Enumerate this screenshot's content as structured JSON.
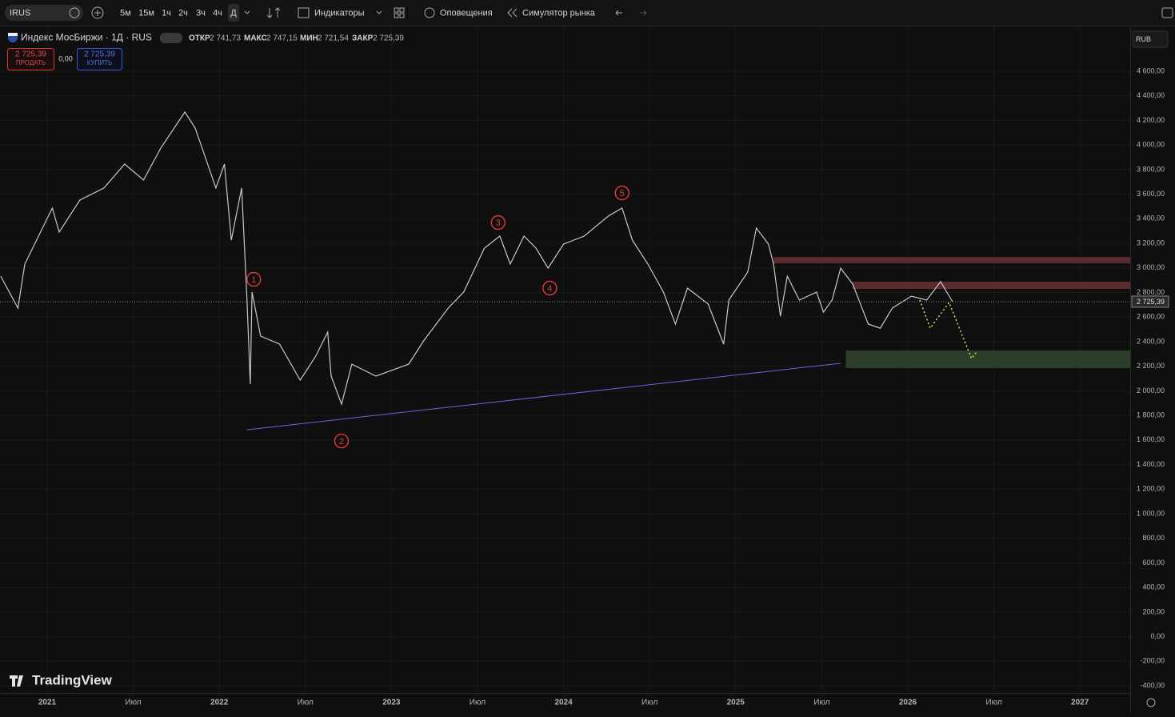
{
  "toolbar": {
    "symbol": "IRUS",
    "intervals": [
      "5м",
      "15м",
      "1ч",
      "2ч",
      "3ч",
      "4ч",
      "Д"
    ],
    "indicators": "Индикаторы",
    "alerts": "Оповещения",
    "replay": "Симулятор рынка"
  },
  "legend": {
    "title": "Индекс МосБиржи · 1Д · RUS",
    "open_label": "ОТКР",
    "open": "2 741,73",
    "high_label": "МАКС",
    "high": "2 747,15",
    "low_label": "МИН",
    "low": "2 721,54",
    "close_label": "ЗАКР",
    "close": "2 725,39",
    "sell_price": "2 725,39",
    "sell": "ПРОДАТЬ",
    "spread": "0,00",
    "buy_price": "2 725,39",
    "buy": "КУПИТЬ"
  },
  "currency": "RUB",
  "brand": "TradingView",
  "chart_data": {
    "type": "line",
    "x": [
      2020.73,
      2020.83,
      2020.87,
      2021.03,
      2021.07,
      2021.19,
      2021.33,
      2021.45,
      2021.56,
      2021.66,
      2021.8,
      2021.86,
      2021.98,
      2022.03,
      2022.07,
      2022.13,
      2022.16,
      2022.18,
      2022.19,
      2022.24,
      2022.35,
      2022.47,
      2022.56,
      2022.63,
      2022.65,
      2022.71,
      2022.77,
      2022.91,
      2023.1,
      2023.19,
      2023.33,
      2023.42,
      2023.54,
      2023.63,
      2023.69,
      2023.77,
      2023.84,
      2023.91,
      2024.0,
      2024.12,
      2024.26,
      2024.34,
      2024.4,
      2024.49,
      2024.58,
      2024.65,
      2024.72,
      2024.84,
      2024.93,
      2024.96,
      2025.07,
      2025.12,
      2025.19,
      2025.22,
      2025.26,
      2025.3,
      2025.37,
      2025.47,
      2025.51,
      2025.56,
      2025.61,
      2025.68,
      2025.77,
      2025.84,
      2025.91,
      2026.02,
      2026.11,
      2026.19,
      2026.26
    ],
    "series": [
      {
        "color": "#c8c8c8",
        "values": [
          2933,
          2673,
          3031,
          3487,
          3291,
          3552,
          3650,
          3845,
          3715,
          3975,
          4268,
          4138,
          3650,
          3845,
          3226,
          3650,
          2770,
          2055,
          2803,
          2445,
          2380,
          2087,
          2282,
          2478,
          2120,
          1892,
          2217,
          2120,
          2217,
          2413,
          2673,
          2803,
          3161,
          3259,
          3031,
          3259,
          3161,
          2998,
          3194,
          3259,
          3422,
          3487,
          3226,
          3031,
          2803,
          2543,
          2836,
          2706,
          2380,
          2738,
          2966,
          3324,
          3194,
          3031,
          2608,
          2933,
          2738,
          2803,
          2640,
          2738,
          2998,
          2868,
          2543,
          2510,
          2673,
          2770,
          2738,
          2888,
          2725
        ]
      }
    ],
    "last_price": 2725.39,
    "last_price_label": "2 725,39",
    "xlim": [
      2020.726,
      2027.292
    ],
    "xticks": [
      2021,
      {
        "value": 2021.5,
        "label": "Июл"
      },
      2022,
      {
        "value": 2022.5,
        "label": "Июл"
      },
      2023,
      {
        "value": 2023.5,
        "label": "Июл"
      },
      2024,
      {
        "value": 2024.5,
        "label": "Июл"
      },
      2025,
      {
        "value": 2025.5,
        "label": "Июл"
      },
      2026,
      {
        "value": 2026.5,
        "label": "Июл"
      },
      2027
    ],
    "ylim": [
      -458,
      4958
    ],
    "yticks": [
      {
        "value": 4600,
        "label": "4 600,00"
      },
      {
        "value": 4400,
        "label": "4 400,00"
      },
      {
        "value": 4200,
        "label": "4 200,00"
      },
      {
        "value": 4000,
        "label": "4 000,00"
      },
      {
        "value": 3800,
        "label": "3 800,00"
      },
      {
        "value": 3600,
        "label": "3 600,00"
      },
      {
        "value": 3400,
        "label": "3 400,00"
      },
      {
        "value": 3200,
        "label": "3 200,00"
      },
      {
        "value": 3000,
        "label": "3 000,00"
      },
      {
        "value": 2800,
        "label": "2 800,00"
      },
      {
        "value": 2600,
        "label": "2 600,00"
      },
      {
        "value": 2400,
        "label": "2 400,00"
      },
      {
        "value": 2200,
        "label": "2 200,00"
      },
      {
        "value": 2000,
        "label": "2 000,00"
      },
      {
        "value": 1800,
        "label": "1 800,00"
      },
      {
        "value": 1600,
        "label": "1 600,00"
      },
      {
        "value": 1400,
        "label": "1 400,00"
      },
      {
        "value": 1200,
        "label": "1 200,00"
      },
      {
        "value": 1000,
        "label": "1 000,00"
      },
      {
        "value": 800,
        "label": "800,00"
      },
      {
        "value": 600,
        "label": "600,00"
      },
      {
        "value": 400,
        "label": "400,00"
      },
      {
        "value": 200,
        "label": "200,00"
      },
      {
        "value": 0,
        "label": "0,00"
      },
      {
        "value": -200,
        "label": "-200,00"
      },
      {
        "value": -400,
        "label": "-400,00"
      }
    ],
    "grid": true,
    "zones": [
      {
        "x": [
          2025.22,
          2027.292
        ],
        "y": [
          3037,
          3089
        ],
        "color": "#5a2a2e"
      },
      {
        "x": [
          2025.68,
          2027.292
        ],
        "y": [
          2829,
          2888
        ],
        "color": "#5a2a2e"
      },
      {
        "x": [
          2025.64,
          2027.292
        ],
        "y": [
          2185,
          2328
        ],
        "color": "#2b3e29"
      }
    ],
    "lines": [
      {
        "x": [
          2022.16,
          2025.61
        ],
        "y": [
          1683,
          2224
        ],
        "color": "#7b5cd6",
        "style": "solid"
      },
      {
        "x": [
          2026.07,
          2026.13,
          2026.24,
          2026.37,
          2026.4
        ],
        "y": [
          2738,
          2510,
          2719,
          2263,
          2315
        ],
        "color": "#d4e04a",
        "style": "dotted"
      }
    ],
    "waves": [
      {
        "label": "1",
        "x": 2022.2,
        "y": 2907
      },
      {
        "label": "2",
        "x": 2022.71,
        "y": 1592
      },
      {
        "label": "3",
        "x": 2023.62,
        "y": 3369
      },
      {
        "label": "4",
        "x": 2023.92,
        "y": 2836
      },
      {
        "label": "5",
        "x": 2024.34,
        "y": 3610
      }
    ]
  }
}
